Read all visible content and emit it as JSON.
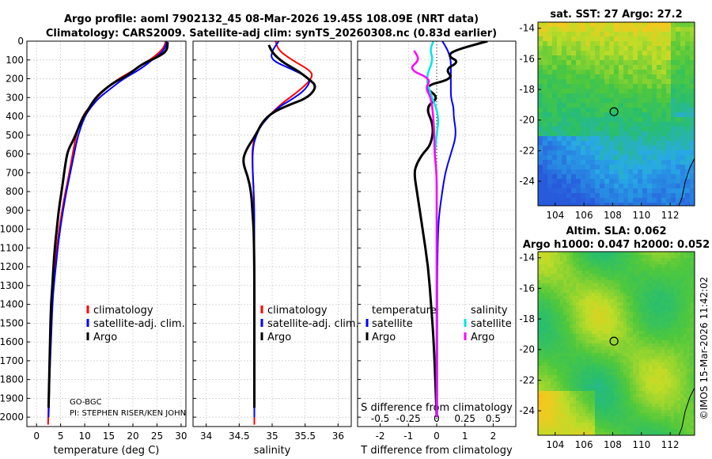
{
  "header": {
    "line1": "Argo profile: aoml 7902132_45 08-Mar-2026 19.45S 108.09E (NRT data)",
    "line2": "Climatology: CARS2009. Satellite-adj clim: synTS_20260308.nc (0.83d earlier)"
  },
  "map_sst": {
    "title": "sat. SST: 27 Argo: 27.2"
  },
  "map_sla": {
    "title1": "Altim. SLA: 0.062",
    "title2": "Argo h1000: 0.047 h2000: 0.052"
  },
  "credit": "©IMOS 15-Mar-2026 11:42:02",
  "notes": {
    "program": "GO-BGC",
    "pi": "PI: STEPHEN RISER/KEN JOHN"
  },
  "legends": {
    "climatology": "climatology",
    "satellite_adj": "satellite-adj. clim.",
    "argo": "Argo",
    "temperature": "temperature",
    "salinity": "salinity",
    "satellite": "satellite"
  },
  "colors": {
    "climatology": "#ff0000",
    "satellite_adj": "#0000ff",
    "argo": "#000000",
    "t_satellite": "#0000ff",
    "s_satellite": "#00e5e5",
    "s_argo": "#ff00ff"
  },
  "chart_data": [
    {
      "type": "line",
      "name": "temperature",
      "xlabel": "temperature (deg C)",
      "xlim": [
        -2,
        31
      ],
      "xticks": [
        0,
        5,
        10,
        15,
        20,
        25,
        30
      ],
      "ylim": [
        0,
        2050
      ],
      "yticks": [
        0,
        100,
        200,
        300,
        400,
        500,
        600,
        700,
        800,
        900,
        1000,
        1100,
        1200,
        1300,
        1400,
        1500,
        1600,
        1700,
        1800,
        1900,
        2000
      ],
      "series": [
        {
          "name": "climatology",
          "x": [
            26.8,
            26.5,
            25.5,
            23.5,
            20.5,
            17.0,
            14.5,
            12.5,
            11.0,
            9.5,
            8.2,
            7.5,
            6.8,
            6.0,
            5.3,
            4.7,
            4.2,
            3.8,
            3.5,
            3.2,
            2.9,
            2.6,
            2.4
          ],
          "y": [
            0,
            30,
            60,
            100,
            150,
            200,
            250,
            300,
            350,
            400,
            500,
            600,
            700,
            800,
            900,
            1000,
            1100,
            1200,
            1300,
            1400,
            1600,
            1800,
            2040
          ]
        },
        {
          "name": "satellite-adj. clim.",
          "x": [
            27.0,
            26.8,
            26.0,
            24.0,
            21.5,
            18.0,
            15.5,
            13.0,
            11.3,
            10.0,
            8.6,
            7.8,
            7.0,
            6.2,
            5.5,
            4.9,
            4.4,
            4.0,
            3.6,
            3.3,
            3.0,
            2.7,
            2.5
          ],
          "y": [
            0,
            30,
            60,
            100,
            150,
            200,
            250,
            300,
            350,
            400,
            500,
            600,
            700,
            800,
            900,
            1000,
            1100,
            1200,
            1300,
            1400,
            1600,
            1800,
            2000
          ]
        },
        {
          "name": "Argo",
          "x": [
            27.2,
            27.1,
            25.5,
            22.0,
            19.0,
            16.0,
            13.5,
            12.0,
            10.8,
            9.3,
            7.8,
            6.5,
            6.0,
            5.2,
            4.6,
            4.2,
            3.8,
            3.5,
            3.3,
            3.0,
            2.8,
            2.5
          ],
          "y": [
            5,
            50,
            80,
            120,
            180,
            220,
            270,
            310,
            360,
            420,
            520,
            580,
            650,
            800,
            900,
            1000,
            1100,
            1200,
            1300,
            1400,
            1600,
            1950
          ]
        }
      ]
    },
    {
      "type": "line",
      "name": "salinity",
      "xlabel": "salinity",
      "xlim": [
        33.8,
        36.2
      ],
      "xticks": [
        34,
        34.5,
        35,
        35.5,
        36
      ],
      "ylim": [
        0,
        2050
      ],
      "series": [
        {
          "name": "climatology",
          "x": [
            35.05,
            35.1,
            35.3,
            35.55,
            35.62,
            35.55,
            35.35,
            35.15,
            35.0,
            34.85,
            34.75,
            34.7,
            34.7,
            34.72,
            34.72,
            34.73,
            34.73,
            34.73,
            34.73,
            34.73,
            34.73,
            34.73
          ],
          "y": [
            0,
            50,
            100,
            150,
            180,
            220,
            280,
            330,
            380,
            430,
            500,
            560,
            650,
            800,
            900,
            1000,
            1100,
            1200,
            1400,
            1600,
            1800,
            2040
          ]
        },
        {
          "name": "satellite-adj. clim.",
          "x": [
            35.1,
            35.0,
            34.98,
            35.3,
            35.6,
            35.5,
            35.3,
            35.1,
            34.95,
            34.83,
            34.76,
            34.71,
            34.7,
            34.72,
            34.73,
            34.73,
            34.73,
            34.73,
            34.73,
            34.73
          ],
          "y": [
            0,
            50,
            100,
            150,
            200,
            260,
            310,
            350,
            400,
            450,
            500,
            560,
            650,
            800,
            900,
            1000,
            1200,
            1400,
            1600,
            2000
          ]
        },
        {
          "name": "Argo",
          "x": [
            34.95,
            35.0,
            35.15,
            35.4,
            35.55,
            35.68,
            35.55,
            35.25,
            35.0,
            34.85,
            34.75,
            34.6,
            34.55,
            34.63,
            34.68,
            34.7,
            34.72,
            34.73,
            34.73,
            34.73
          ],
          "y": [
            20,
            60,
            110,
            160,
            200,
            240,
            300,
            340,
            380,
            430,
            500,
            580,
            640,
            720,
            800,
            900,
            1000,
            1200,
            1400,
            1950
          ]
        }
      ]
    },
    {
      "type": "line",
      "name": "difference",
      "xlabel": "T difference from climatology",
      "xlabel_top": "S difference from climatology",
      "xlim": [
        -2.8,
        2.8
      ],
      "xticks": [
        -2,
        -1,
        0,
        1,
        2
      ],
      "s_ticks": [
        -0.5,
        -0.25,
        0,
        0.25,
        0.5
      ],
      "ylim": [
        0,
        2050
      ],
      "series": [
        {
          "name": "temperature satellite",
          "x": [
            0.2,
            0.4,
            0.5,
            0.5,
            0.5,
            0.5,
            0.5,
            0.6,
            0.6,
            0.7,
            0.5,
            0.3,
            0.2,
            0.1,
            0.05,
            0.02,
            0.02,
            0.02,
            0.02,
            0.02
          ],
          "y": [
            0,
            50,
            100,
            150,
            200,
            250,
            300,
            350,
            400,
            500,
            600,
            700,
            800,
            900,
            1000,
            1200,
            1400,
            1600,
            1800,
            2000
          ]
        },
        {
          "name": "temperature Argo",
          "x": [
            1.8,
            0.6,
            0.4,
            0.8,
            0.3,
            0.6,
            -0.5,
            0.1,
            -0.4,
            -0.1,
            -0.2,
            -0.5,
            -0.7,
            -0.8,
            -0.7,
            -0.6,
            -0.5,
            -0.3,
            -0.2,
            -0.1,
            0.0
          ],
          "y": [
            0,
            50,
            80,
            110,
            150,
            200,
            240,
            300,
            350,
            450,
            550,
            600,
            650,
            700,
            800,
            900,
            1000,
            1200,
            1400,
            1600,
            2000
          ]
        },
        {
          "name": "salinity satellite",
          "x": [
            -0.03,
            -0.06,
            -0.03,
            -0.1,
            -0.04,
            0.02,
            0.0,
            -0.02,
            0.0,
            0.0,
            0.0,
            0.0,
            0.0,
            0.0,
            0.0
          ],
          "y": [
            0,
            50,
            100,
            200,
            300,
            400,
            500,
            600,
            700,
            800,
            1000,
            1200,
            1400,
            1600,
            2000
          ]
        },
        {
          "name": "salinity Argo",
          "x": [
            -0.2,
            -0.15,
            -0.25,
            -0.05,
            -0.1,
            -0.05,
            -0.03,
            -0.02,
            -0.02,
            0.0,
            0.0,
            0.0,
            0.0,
            0.0,
            0.0
          ],
          "y": [
            50,
            100,
            150,
            200,
            250,
            300,
            400,
            500,
            600,
            700,
            900,
            1200,
            1500,
            1800,
            2000
          ]
        }
      ]
    },
    {
      "type": "heatmap",
      "name": "sat. SST map",
      "xlim": [
        102.8,
        113.7
      ],
      "ylim": [
        -25.6,
        -13.6
      ],
      "xticks": [
        104,
        106,
        108,
        110,
        112
      ],
      "yticks": [
        -14,
        -16,
        -18,
        -20,
        -22,
        -24
      ],
      "argo_position": [
        108.09,
        -19.45
      ]
    },
    {
      "type": "heatmap",
      "name": "Altim. SLA map",
      "xlim": [
        102.8,
        113.7
      ],
      "ylim": [
        -25.6,
        -13.6
      ],
      "xticks": [
        104,
        106,
        108,
        110,
        112
      ],
      "yticks": [
        -14,
        -16,
        -18,
        -20,
        -22,
        -24
      ],
      "argo_position": [
        108.09,
        -19.45
      ]
    }
  ]
}
